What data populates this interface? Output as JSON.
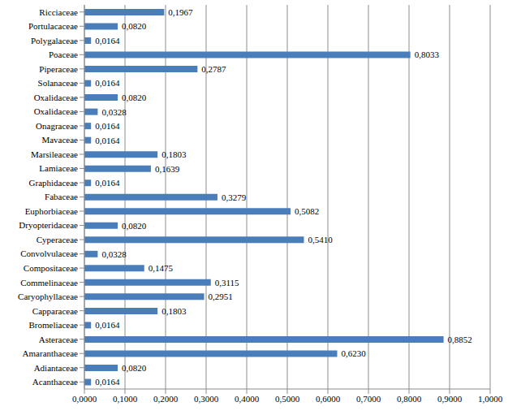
{
  "chart_data": {
    "type": "bar",
    "orientation": "horizontal",
    "categories": [
      "Ricciaceae",
      "Portulacaceae",
      "Polygalaceae",
      "Poaceae",
      "Piperaceae",
      "Solanaceae",
      "Oxalidaceae",
      "Oxalidaceae",
      "Onagraceae",
      "Mavaceae",
      "Marsileaceae",
      "Lamiaceae",
      "Graphidaceae",
      "Fabaceae",
      "Euphorbiaceae",
      "Dryopteridaceae",
      "Cyperaceae",
      "Convolvulaceae",
      "Compositaceae",
      "Commelinaceae",
      "Caryophyllaceae",
      "Capparaceae",
      "Bromeliaceae",
      "Asteraceae",
      "Amaranthaceae",
      "Adiantaceae",
      "Acanthaceae"
    ],
    "values": [
      0.1967,
      0.082,
      0.0164,
      0.8033,
      0.2787,
      0.0164,
      0.082,
      0.0328,
      0.0164,
      0.0164,
      0.1803,
      0.1639,
      0.0164,
      0.3279,
      0.5082,
      0.082,
      0.541,
      0.0328,
      0.1475,
      0.3115,
      0.2951,
      0.1803,
      0.0164,
      0.8852,
      0.623,
      0.082,
      0.0164
    ],
    "value_labels": [
      "0,1967",
      "0,0820",
      "0,0164",
      "0,8033",
      "0,2787",
      "0,0164",
      "0,0820",
      "0,0328",
      "0,0164",
      "0,0164",
      "0,1803",
      "0,1639",
      "0,0164",
      "0,3279",
      "0,5082",
      "0,0820",
      "0,5410",
      "0,0328",
      "0,1475",
      "0,3115",
      "0,2951",
      "0,1803",
      "0,0164",
      "0,8852",
      "0,6230",
      "0,0820",
      "0,0164"
    ],
    "data_labels": true,
    "color": "#4a7ebb",
    "xlim": [
      0,
      1
    ],
    "xticks": [
      {
        "value": 0,
        "label": "0,0000"
      },
      {
        "value": 0.1,
        "label": "0,1000"
      },
      {
        "value": 0.2,
        "label": "0,2000"
      },
      {
        "value": 0.3,
        "label": "0,3000"
      },
      {
        "value": 0.4,
        "label": "0,4000"
      },
      {
        "value": 0.5,
        "label": "0,5000"
      },
      {
        "value": 0.6,
        "label": "0,6000"
      },
      {
        "value": 0.7,
        "label": "0,7000"
      },
      {
        "value": 0.8,
        "label": "0,8000"
      },
      {
        "value": 0.9,
        "label": "0,9000"
      },
      {
        "value": 1,
        "label": "1,0000"
      }
    ],
    "grid": true
  }
}
